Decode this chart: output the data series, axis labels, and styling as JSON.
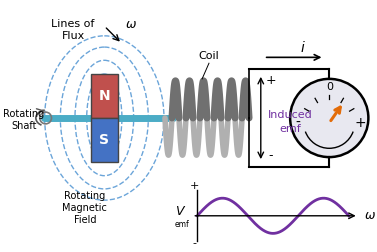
{
  "bg_color": "#ffffff",
  "magnet_n_color": "#c0504d",
  "magnet_s_color": "#4472c4",
  "shaft_color": "#4bacc6",
  "flux_color": "#5b9bd5",
  "sine_color": "#7030a0",
  "needle_color": "#e36c09",
  "text_color": "#000000",
  "coil_dark": "#707070",
  "coil_light": "#b0b0b0",
  "vm_face": "#e8e8f0",
  "label_flux": "Lines of\nFlux",
  "label_rotating_shaft": "Rotating\nShaft",
  "label_rotating_field": "Rotating\nMagnetic\nField",
  "label_coil": "Coil",
  "label_induced_emf": "Induced\nemf",
  "label_i": "i",
  "label_omega1": "ω",
  "label_omega2": "ω",
  "label_Vemf": "V"
}
